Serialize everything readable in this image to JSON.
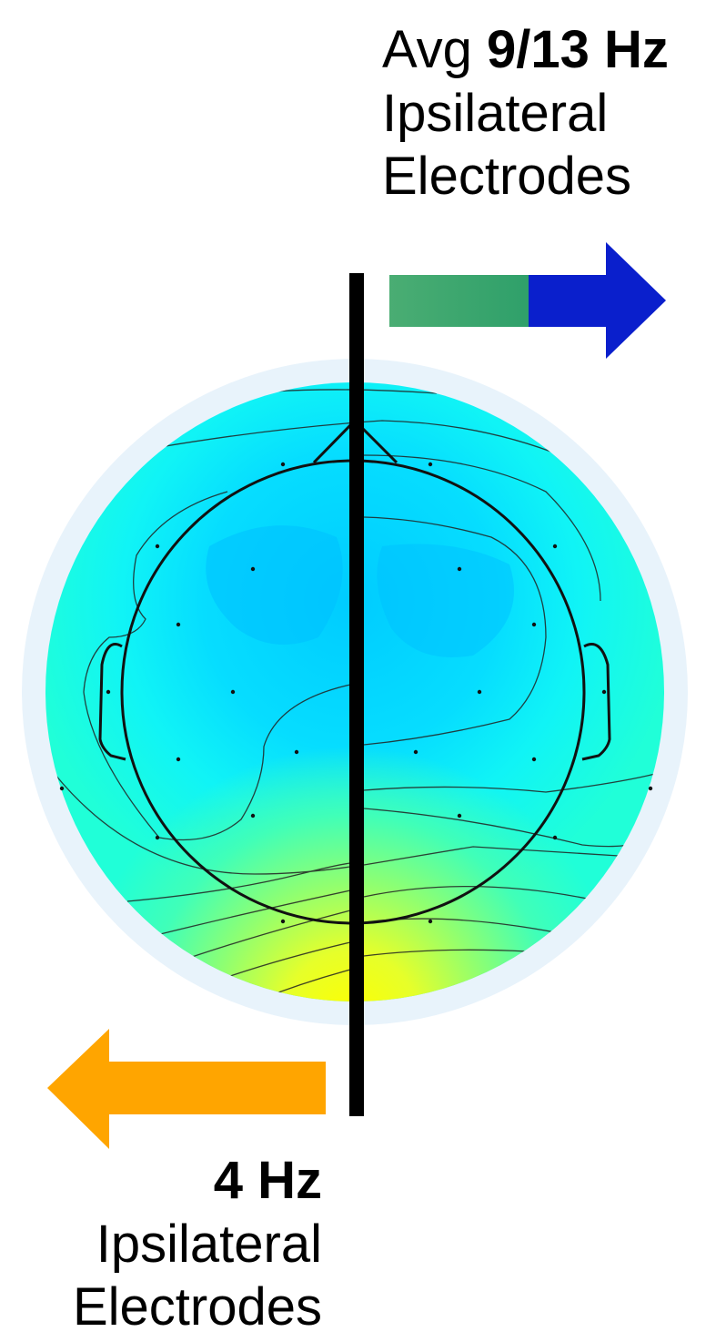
{
  "top_label": {
    "prefix": "Avg",
    "emphasis": "9/13 Hz",
    "line2": "Ipsilateral",
    "line3": "Electrodes"
  },
  "bottom_label": {
    "emphasis": "4 Hz",
    "line2": "Ipsilateral",
    "line3": "Electrodes"
  },
  "colors": {
    "arrow_right_start": "#4aad73",
    "arrow_right_end": "#0a1fcc",
    "arrow_left": "#ffa500",
    "divider": "#000000",
    "halo": "#e8f3fb",
    "map_high": "#ffff00",
    "map_mid": "#00ffff",
    "map_low": "#00c8ff"
  }
}
